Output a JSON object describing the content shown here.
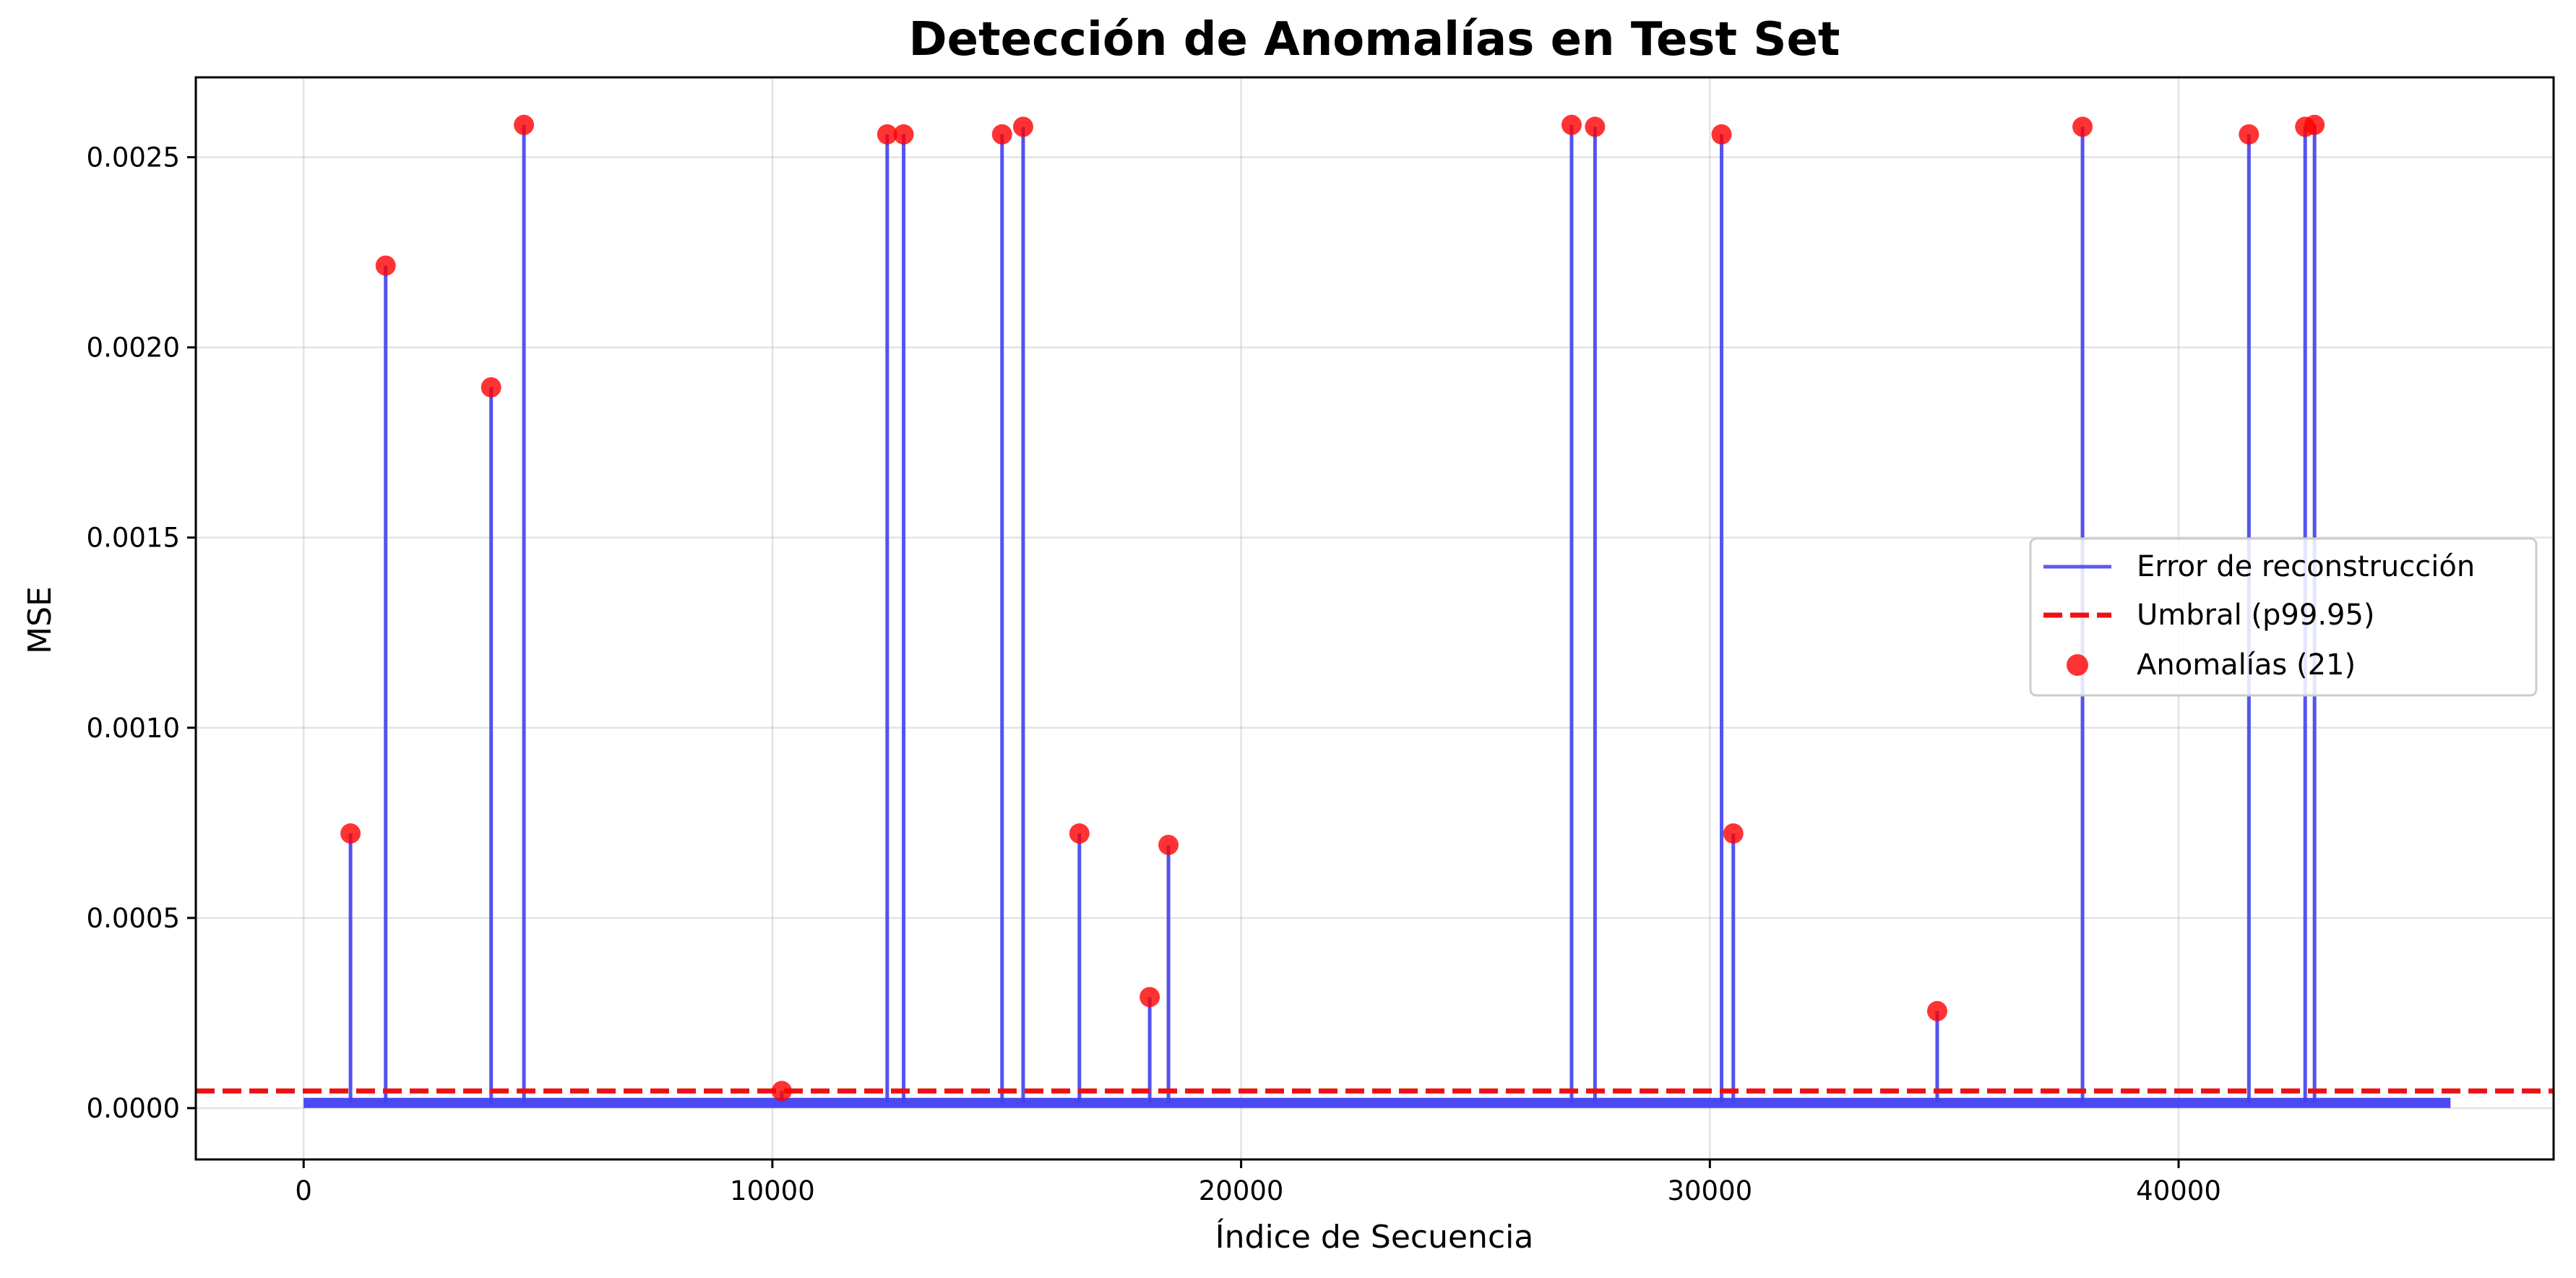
{
  "chart_data": {
    "type": "line",
    "title": "Detección de Anomalías en Test Set",
    "xlabel": "Índice de Secuencia",
    "ylabel": "MSE",
    "xlim": [
      -2300,
      48000
    ],
    "ylim": [
      -0.000135,
      0.00271
    ],
    "xticks": [
      0,
      10000,
      20000,
      30000,
      40000
    ],
    "yticks": [
      0.0,
      0.0005,
      0.001,
      0.0015,
      0.002,
      0.0025
    ],
    "xtick_labels": [
      "0",
      "10000",
      "20000",
      "30000",
      "40000"
    ],
    "ytick_labels": [
      "0.0000",
      "0.0005",
      "0.0010",
      "0.0015",
      "0.0020",
      "0.0025"
    ],
    "grid": true,
    "legend_position": "center-right",
    "series": [
      {
        "name": "Error de reconstrucción",
        "kind": "line",
        "color": "#4040f0",
        "x_range": [
          0,
          45800
        ],
        "baseline": 1.5e-05,
        "spikes": [
          {
            "x": 1000,
            "y": 0.000722
          },
          {
            "x": 1750,
            "y": 0.002215
          },
          {
            "x": 4000,
            "y": 0.001895
          },
          {
            "x": 4700,
            "y": 0.002585
          },
          {
            "x": 10200,
            "y": 4.5e-05
          },
          {
            "x": 12450,
            "y": 0.00256
          },
          {
            "x": 12800,
            "y": 0.00256
          },
          {
            "x": 14900,
            "y": 0.00256
          },
          {
            "x": 15350,
            "y": 0.00258
          },
          {
            "x": 16550,
            "y": 0.000722
          },
          {
            "x": 18050,
            "y": 0.000292
          },
          {
            "x": 18450,
            "y": 0.000692
          },
          {
            "x": 27050,
            "y": 0.002585
          },
          {
            "x": 27550,
            "y": 0.00258
          },
          {
            "x": 30250,
            "y": 0.00256
          },
          {
            "x": 30500,
            "y": 0.000722
          },
          {
            "x": 34850,
            "y": 0.000255
          },
          {
            "x": 37950,
            "y": 0.00258
          },
          {
            "x": 41500,
            "y": 0.00256
          },
          {
            "x": 42700,
            "y": 0.00258
          },
          {
            "x": 42900,
            "y": 0.002585
          }
        ]
      },
      {
        "name": "Umbral (p99.95)",
        "kind": "hline",
        "color": "#ee1111",
        "y": 4.5e-05
      },
      {
        "name": "Anomalías (21)",
        "kind": "scatter",
        "color": "#ff0000",
        "points": [
          {
            "x": 1000,
            "y": 0.000722
          },
          {
            "x": 1750,
            "y": 0.002215
          },
          {
            "x": 4000,
            "y": 0.001895
          },
          {
            "x": 4700,
            "y": 0.002585
          },
          {
            "x": 10200,
            "y": 4.5e-05
          },
          {
            "x": 12450,
            "y": 0.00256
          },
          {
            "x": 12800,
            "y": 0.00256
          },
          {
            "x": 14900,
            "y": 0.00256
          },
          {
            "x": 15350,
            "y": 0.00258
          },
          {
            "x": 16550,
            "y": 0.000722
          },
          {
            "x": 18050,
            "y": 0.000292
          },
          {
            "x": 18450,
            "y": 0.000692
          },
          {
            "x": 27050,
            "y": 0.002585
          },
          {
            "x": 27550,
            "y": 0.00258
          },
          {
            "x": 30250,
            "y": 0.00256
          },
          {
            "x": 30500,
            "y": 0.000722
          },
          {
            "x": 34850,
            "y": 0.000255
          },
          {
            "x": 37950,
            "y": 0.00258
          },
          {
            "x": 41500,
            "y": 0.00256
          },
          {
            "x": 42700,
            "y": 0.00258
          },
          {
            "x": 42900,
            "y": 0.002585
          }
        ]
      }
    ]
  }
}
